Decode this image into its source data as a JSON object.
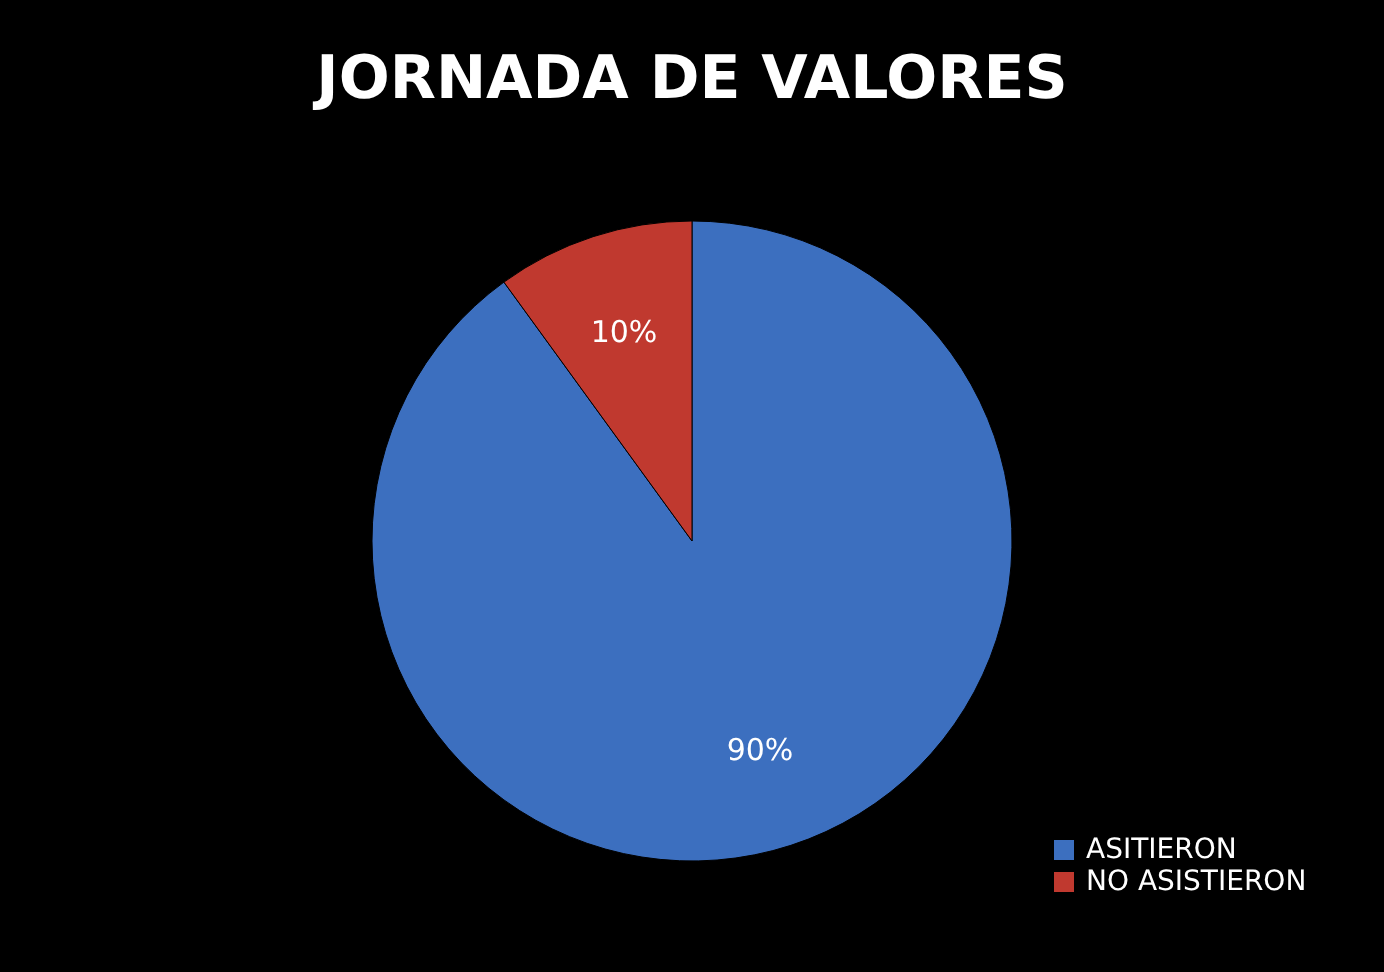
{
  "chart_data": {
    "type": "pie",
    "title": "JORNADA DE VALORES",
    "categories": [
      "ASITIERON",
      "NO ASISTIERON"
    ],
    "values": [
      90,
      10
    ],
    "colors": [
      "#3c6fbf",
      "#c0392f"
    ],
    "value_labels": [
      "90%",
      "10%"
    ],
    "legend": "bottom right"
  }
}
